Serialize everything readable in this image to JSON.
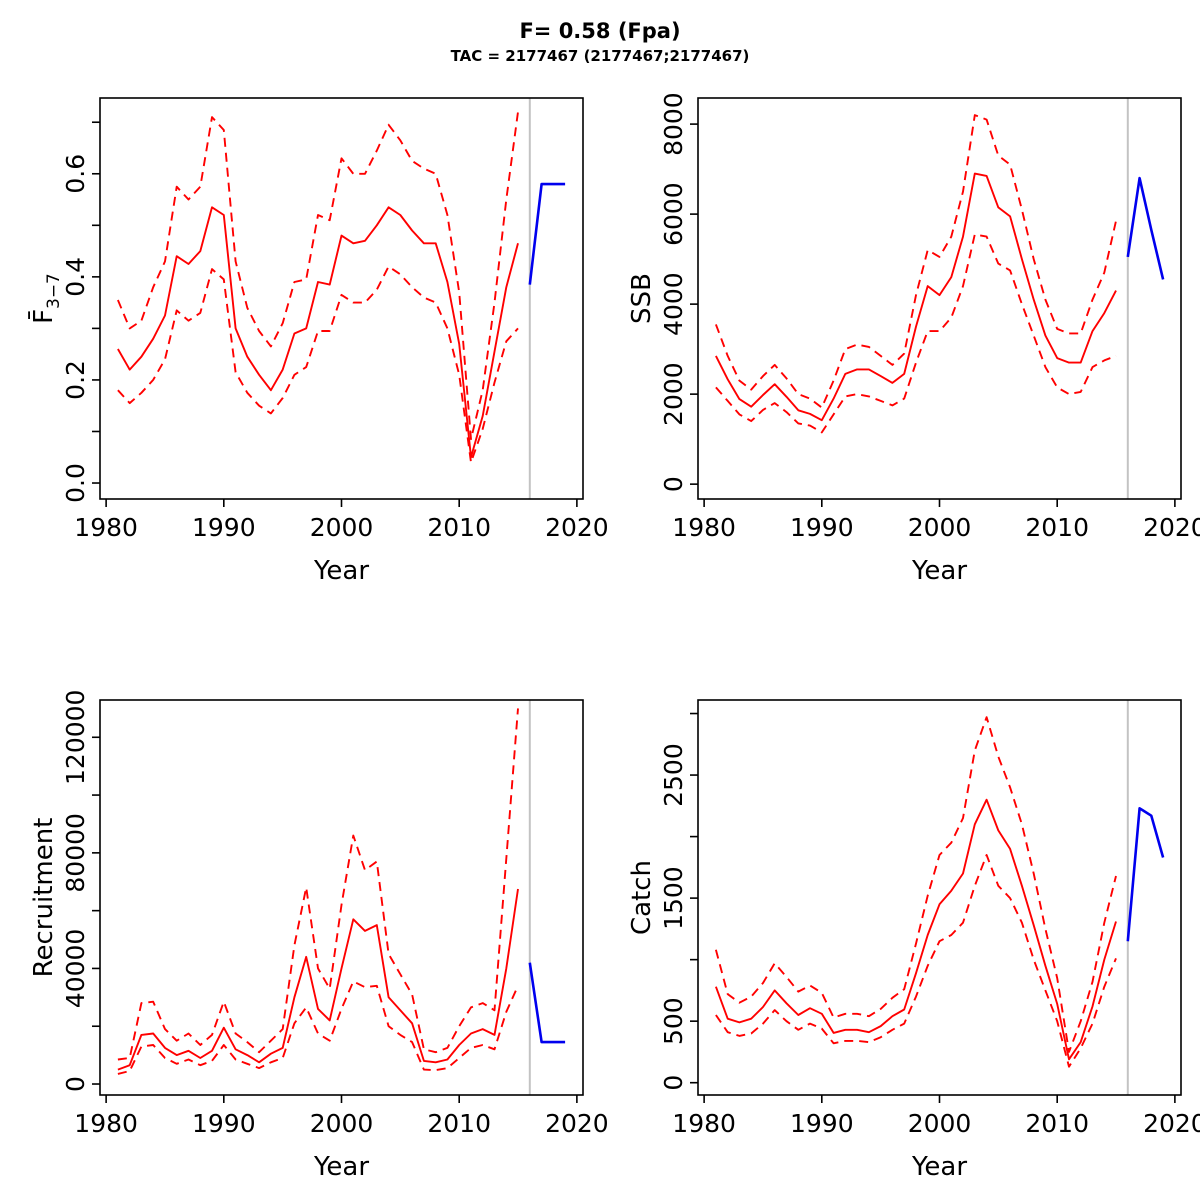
{
  "header": {
    "title": "F= 0.58 (Fpa)",
    "subtitle": "TAC = 2177467 (2177467;2177467)"
  },
  "colors": {
    "estimate": "#FF0000",
    "forecast": "#0000EE",
    "divider": "#C3C3C3",
    "frame": "#000000",
    "text": "#000000"
  },
  "years": [
    1981,
    1982,
    1983,
    1984,
    1985,
    1986,
    1987,
    1988,
    1989,
    1990,
    1991,
    1992,
    1993,
    1994,
    1995,
    1996,
    1997,
    1998,
    1999,
    2000,
    2001,
    2002,
    2003,
    2004,
    2005,
    2006,
    2007,
    2008,
    2009,
    2010,
    2011,
    2012,
    2013,
    2014,
    2015
  ],
  "forecast_years": [
    2016,
    2017,
    2018,
    2019
  ],
  "chart_data": [
    {
      "type": "line",
      "id": "fbar",
      "ylabel": "F̄",
      "ylabel_sub": "3−7",
      "xlabel": "Year",
      "xlim": [
        1979.48,
        2020.52
      ],
      "ylim": [
        -0.031,
        0.747
      ],
      "xticks": [
        [
          1980,
          "1980"
        ],
        [
          1990,
          "1990"
        ],
        [
          2000,
          "2000"
        ],
        [
          2010,
          "2010"
        ],
        [
          2020,
          "2020"
        ]
      ],
      "yticks": [
        [
          0,
          "0.0"
        ],
        [
          0.1,
          ""
        ],
        [
          0.2,
          "0.2"
        ],
        [
          0.3,
          ""
        ],
        [
          0.4,
          "0.4"
        ],
        [
          0.5,
          ""
        ],
        [
          0.6,
          "0.6"
        ],
        [
          0.7,
          ""
        ]
      ],
      "vline_x": 2016,
      "series": [
        {
          "name": "median",
          "role": "estimate",
          "dash": false,
          "values": [
            0.26,
            0.22,
            0.245,
            0.28,
            0.325,
            0.44,
            0.425,
            0.45,
            0.535,
            0.52,
            0.3,
            0.245,
            0.21,
            0.18,
            0.22,
            0.29,
            0.3,
            0.39,
            0.385,
            0.48,
            0.465,
            0.47,
            0.5,
            0.535,
            0.52,
            0.49,
            0.465,
            0.465,
            0.39,
            0.27,
            0.05,
            0.13,
            0.255,
            0.38,
            0.465
          ]
        },
        {
          "name": "ci-lower",
          "role": "estimate",
          "dash": true,
          "values": [
            0.18,
            0.155,
            0.175,
            0.2,
            0.24,
            0.335,
            0.315,
            0.33,
            0.415,
            0.395,
            0.215,
            0.175,
            0.15,
            0.135,
            0.165,
            0.21,
            0.225,
            0.295,
            0.295,
            0.365,
            0.35,
            0.35,
            0.375,
            0.42,
            0.405,
            0.38,
            0.36,
            0.35,
            0.3,
            0.21,
            0.04,
            0.105,
            0.195,
            0.275,
            0.3
          ]
        },
        {
          "name": "ci-upper",
          "role": "estimate",
          "dash": true,
          "values": [
            0.355,
            0.3,
            0.315,
            0.38,
            0.43,
            0.575,
            0.55,
            0.575,
            0.71,
            0.685,
            0.43,
            0.34,
            0.295,
            0.265,
            0.31,
            0.39,
            0.395,
            0.52,
            0.51,
            0.63,
            0.6,
            0.6,
            0.645,
            0.695,
            0.665,
            0.625,
            0.61,
            0.6,
            0.52,
            0.37,
            0.085,
            0.18,
            0.35,
            0.55,
            0.72
          ]
        },
        {
          "name": "forecast",
          "role": "forecast",
          "dash": false,
          "values": [
            0.385,
            0.58,
            0.58,
            0.58
          ]
        }
      ]
    },
    {
      "type": "line",
      "id": "ssb",
      "ylabel": "SSB",
      "ylabel_sub": "",
      "xlabel": "Year",
      "xlim": [
        1979.48,
        2020.52
      ],
      "ylim": [
        -330,
        8580
      ],
      "xticks": [
        [
          1980,
          "1980"
        ],
        [
          1990,
          "1990"
        ],
        [
          2000,
          "2000"
        ],
        [
          2010,
          "2010"
        ],
        [
          2020,
          "2020"
        ]
      ],
      "yticks": [
        [
          0,
          "0"
        ],
        [
          2000,
          "2000"
        ],
        [
          4000,
          "4000"
        ],
        [
          6000,
          "6000"
        ],
        [
          8000,
          "8000"
        ]
      ],
      "vline_x": 2016,
      "series": [
        {
          "name": "median",
          "role": "estimate",
          "dash": false,
          "values": [
            2850,
            2330,
            1890,
            1720,
            1980,
            2220,
            1940,
            1640,
            1560,
            1420,
            1900,
            2450,
            2550,
            2550,
            2400,
            2250,
            2450,
            3500,
            4400,
            4200,
            4600,
            5500,
            6900,
            6850,
            6150,
            5950,
            5000,
            4100,
            3300,
            2800,
            2700,
            2700,
            3400,
            3800,
            4300
          ]
        },
        {
          "name": "ci-lower",
          "role": "estimate",
          "dash": true,
          "values": [
            2150,
            1850,
            1550,
            1400,
            1650,
            1800,
            1600,
            1350,
            1300,
            1150,
            1550,
            1950,
            2000,
            1950,
            1850,
            1750,
            1900,
            2700,
            3400,
            3400,
            3700,
            4400,
            5550,
            5500,
            4900,
            4750,
            4000,
            3300,
            2600,
            2150,
            2000,
            2050,
            2600,
            2750,
            2850
          ]
        },
        {
          "name": "ci-upper",
          "role": "estimate",
          "dash": true,
          "values": [
            3550,
            2850,
            2300,
            2100,
            2400,
            2650,
            2350,
            2000,
            1900,
            1700,
            2300,
            3000,
            3100,
            3050,
            2850,
            2650,
            2900,
            4200,
            5200,
            5050,
            5500,
            6500,
            8200,
            8100,
            7300,
            7100,
            6100,
            5000,
            4100,
            3450,
            3350,
            3350,
            4100,
            4700,
            5850
          ]
        },
        {
          "name": "forecast",
          "role": "forecast",
          "dash": false,
          "values": [
            5050,
            6800,
            5650,
            4550
          ]
        }
      ]
    },
    {
      "type": "line",
      "id": "recruitment",
      "ylabel": "Recruitment",
      "ylabel_sub": "",
      "xlabel": "Year",
      "xlim": [
        1979.48,
        2020.52
      ],
      "ylim": [
        -3800,
        132900
      ],
      "xticks": [
        [
          1980,
          "1980"
        ],
        [
          1990,
          "1990"
        ],
        [
          2000,
          "2000"
        ],
        [
          2010,
          "2010"
        ],
        [
          2020,
          "2020"
        ]
      ],
      "yticks": [
        [
          0,
          "0"
        ],
        [
          20000,
          ""
        ],
        [
          40000,
          "40000"
        ],
        [
          60000,
          ""
        ],
        [
          80000,
          "80000"
        ],
        [
          100000,
          ""
        ],
        [
          120000,
          "120000"
        ]
      ],
      "vline_x": 2016,
      "series": [
        {
          "name": "median",
          "role": "estimate",
          "dash": false,
          "values": [
            5000,
            6500,
            17000,
            17500,
            12500,
            10000,
            11500,
            9000,
            11500,
            19500,
            12000,
            10000,
            7500,
            10500,
            12500,
            30000,
            44000,
            26000,
            22000,
            40000,
            57000,
            53000,
            55000,
            30000,
            25500,
            21000,
            8000,
            7500,
            8500,
            13500,
            17500,
            19000,
            17000,
            40000,
            67500
          ]
        },
        {
          "name": "ci-lower",
          "role": "estimate",
          "dash": true,
          "values": [
            3500,
            4500,
            13000,
            13500,
            9000,
            7000,
            8500,
            6500,
            8000,
            13500,
            8500,
            7000,
            5500,
            7500,
            9000,
            21000,
            26500,
            17500,
            15000,
            26000,
            35500,
            33500,
            34000,
            20000,
            17000,
            14500,
            5000,
            4800,
            5500,
            9000,
            12500,
            13500,
            12000,
            25000,
            34000
          ]
        },
        {
          "name": "ci-upper",
          "role": "estimate",
          "dash": true,
          "values": [
            8500,
            9000,
            28000,
            28500,
            19000,
            15000,
            17500,
            13500,
            17000,
            28500,
            17500,
            14500,
            11000,
            15000,
            19000,
            48000,
            68000,
            40000,
            33000,
            62000,
            86000,
            74000,
            77000,
            45000,
            38000,
            31000,
            12000,
            11000,
            12500,
            20000,
            26500,
            28000,
            25500,
            78000,
            130000
          ]
        },
        {
          "name": "forecast",
          "role": "forecast",
          "dash": false,
          "values": [
            42000,
            14500,
            14500,
            14500
          ]
        }
      ]
    },
    {
      "type": "line",
      "id": "catch",
      "ylabel": "Catch",
      "ylabel_sub": "",
      "xlabel": "Year",
      "xlim": [
        1979.48,
        2020.52
      ],
      "ylim": [
        -100,
        3110
      ],
      "xticks": [
        [
          1980,
          "1980"
        ],
        [
          1990,
          "1990"
        ],
        [
          2000,
          "2000"
        ],
        [
          2010,
          "2010"
        ],
        [
          2020,
          "2020"
        ]
      ],
      "yticks": [
        [
          0,
          "0"
        ],
        [
          500,
          "500"
        ],
        [
          1000,
          ""
        ],
        [
          1500,
          "1500"
        ],
        [
          2000,
          ""
        ],
        [
          2500,
          "2500"
        ],
        [
          3000,
          ""
        ]
      ],
      "vline_x": 2016,
      "series": [
        {
          "name": "median",
          "role": "estimate",
          "dash": false,
          "values": [
            780,
            520,
            490,
            520,
            615,
            750,
            645,
            550,
            605,
            560,
            405,
            430,
            430,
            410,
            460,
            540,
            595,
            890,
            1200,
            1450,
            1560,
            1700,
            2100,
            2300,
            2050,
            1900,
            1600,
            1280,
            950,
            640,
            190,
            330,
            620,
            1000,
            1310
          ]
        },
        {
          "name": "ci-lower",
          "role": "estimate",
          "dash": true,
          "values": [
            550,
            410,
            380,
            400,
            480,
            590,
            500,
            430,
            480,
            440,
            320,
            340,
            340,
            330,
            370,
            430,
            480,
            700,
            950,
            1150,
            1200,
            1300,
            1600,
            1850,
            1600,
            1500,
            1300,
            1000,
            750,
            500,
            130,
            280,
            480,
            780,
            1010
          ]
        },
        {
          "name": "ci-upper",
          "role": "estimate",
          "dash": true,
          "values": [
            1080,
            720,
            650,
            700,
            810,
            970,
            860,
            740,
            790,
            730,
            530,
            560,
            560,
            540,
            600,
            690,
            760,
            1130,
            1520,
            1850,
            1950,
            2150,
            2700,
            2970,
            2650,
            2400,
            2100,
            1700,
            1250,
            850,
            250,
            500,
            820,
            1300,
            1680
          ]
        },
        {
          "name": "forecast",
          "role": "forecast",
          "dash": false,
          "values": [
            1150,
            2230,
            2170,
            1830
          ]
        }
      ]
    }
  ]
}
